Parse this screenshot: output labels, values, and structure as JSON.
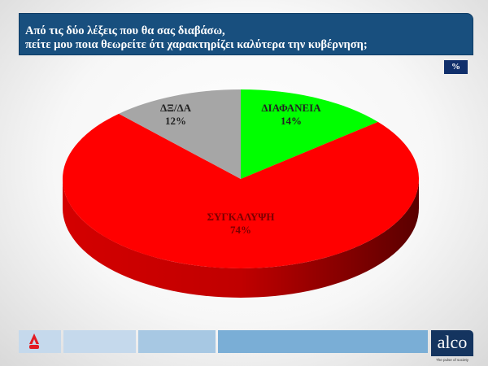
{
  "header": {
    "title_line1": "Από τις δύο λέξεις που θα σας διαβάσω,",
    "title_line2": "πείτε μου ποια θεωρείτε ότι χαρακτηρίζει καλύτερα την κυβέρνηση;",
    "unit_badge": "%"
  },
  "chart_data": {
    "type": "pie",
    "style": "3d",
    "slices": [
      {
        "label": "ΔΙΑΦΑΝΕΙΑ",
        "value": 14,
        "value_label": "14%",
        "color": "#00ff00"
      },
      {
        "label": "ΣΥΓΚΑΛΥΨΗ",
        "value": 74,
        "value_label": "74%",
        "color": "#ff0000"
      },
      {
        "label": "ΔΞ/ΔΑ",
        "value": 12,
        "value_label": "12%",
        "color": "#a6a6a6"
      }
    ],
    "start_angle": "12 o'clock",
    "direction": "clockwise"
  },
  "footer": {
    "logo_text": "alco",
    "tagline": "The pulse of society",
    "colors": [
      "#c5d9ec",
      "#a7c8e3",
      "#7aaed6"
    ]
  }
}
